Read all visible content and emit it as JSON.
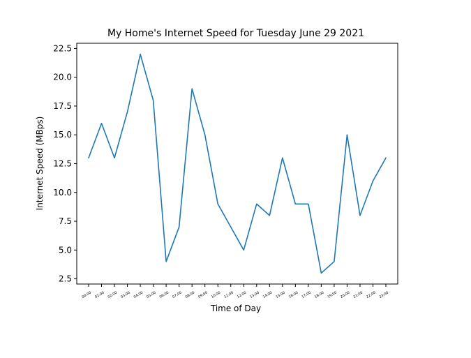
{
  "chart_data": {
    "type": "line",
    "title": "My Home's Internet Speed for Tuesday June 29 2021",
    "xlabel": "Time of Day",
    "ylabel": "Internet Speed (MBps)",
    "categories": [
      "00:00",
      "01:00",
      "02:00",
      "03:00",
      "04:00",
      "05:00",
      "06:00",
      "07:00",
      "08:00",
      "09:00",
      "10:00",
      "11:00",
      "12:00",
      "13:00",
      "14:00",
      "15:00",
      "16:00",
      "17:00",
      "18:00",
      "19:00",
      "20:00",
      "21:00",
      "22:00",
      "23:00"
    ],
    "series": [
      {
        "values": [
          13,
          16,
          13,
          17,
          22,
          18,
          4,
          7,
          19,
          15,
          9,
          7,
          5,
          9,
          8,
          13,
          9,
          9,
          3,
          4,
          15,
          8,
          11,
          13
        ],
        "color": "#1f77b4"
      }
    ],
    "ylim": [
      2.05,
      22.95
    ],
    "yticks": [
      2.5,
      5.0,
      7.5,
      10.0,
      12.5,
      15.0,
      17.5,
      20.0,
      22.5
    ],
    "ytick_labels": [
      "2.5",
      "5.0",
      "7.5",
      "10.0",
      "12.5",
      "15.0",
      "17.5",
      "20.0",
      "22.5"
    ],
    "grid": false,
    "legend": "none"
  }
}
